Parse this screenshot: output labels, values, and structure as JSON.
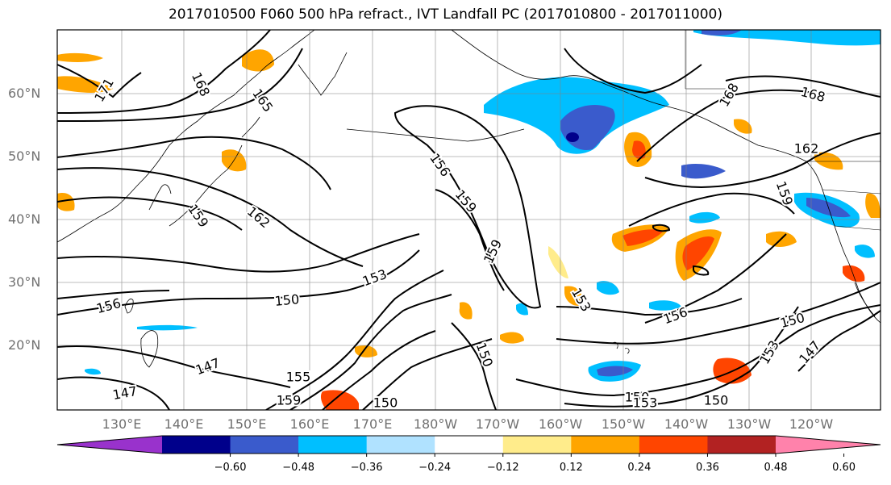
{
  "title": "2017010500 F060 500 hPa refract., IVT Landfall PC (2017010800 - 2017011000)",
  "lat_labels": [
    "60°N",
    "50°N",
    "40°N",
    "30°N",
    "20°N"
  ],
  "lon_labels": [
    "130°E",
    "140°E",
    "150°E",
    "160°E",
    "170°E",
    "180°W",
    "170°W",
    "160°W",
    "150°W",
    "140°W",
    "130°W",
    "120°W"
  ],
  "contour_labels": [
    "171",
    "168",
    "165",
    "168",
    "162",
    "159",
    "162",
    "156",
    "159",
    "159",
    "153",
    "150",
    "156",
    "147",
    "147",
    "150",
    "150",
    "159",
    "153",
    "150",
    "156",
    "153",
    "150",
    "147",
    "150",
    "153",
    "168",
    "155",
    "159"
  ],
  "colorbar": {
    "tick_labels": [
      "−0.60",
      "−0.48",
      "−0.36",
      "−0.24",
      "−0.12",
      "0.12",
      "0.24",
      "0.36",
      "0.48",
      "0.60"
    ],
    "colors": [
      "#9932CC",
      "#00008B",
      "#3A5BCC",
      "#00BFFF",
      "#B0E2FF",
      "#FFFFFF",
      "#FFEC8B",
      "#FFA500",
      "#FF4500",
      "#B22222",
      "#FF82AB"
    ]
  },
  "colors": {
    "contour": "#000000",
    "grid": "#808080",
    "coast": "#000000"
  }
}
